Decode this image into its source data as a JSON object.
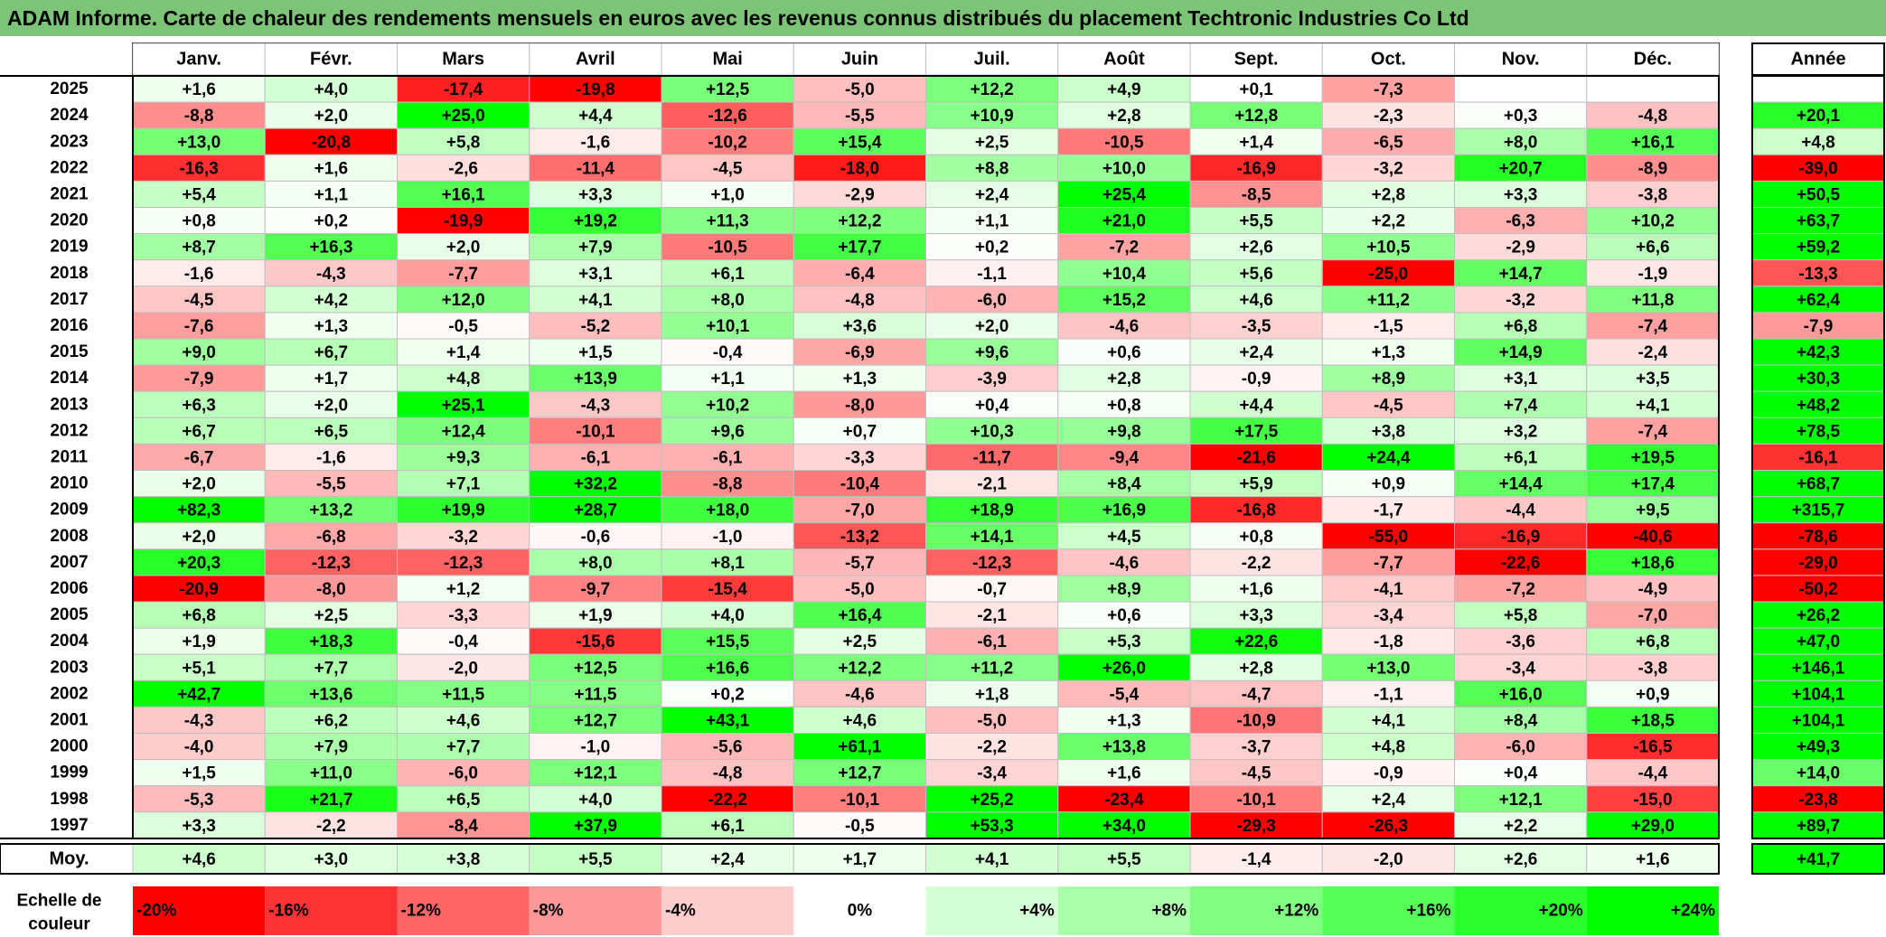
{
  "title": "ADAM Informe. Carte de chaleur des rendements mensuels en euros avec les revenus connus distribués du placement Techtronic Industries Co Ltd",
  "colors": {
    "title_bg": "#7cc576",
    "neg_max": "#ff0000",
    "pos_max": "#00ff00",
    "neutral": "#ffffff",
    "grid": "#bfbfbf",
    "border": "#000000"
  },
  "chart_data": {
    "type": "heatmap",
    "months": [
      "Janv.",
      "Févr.",
      "Mars",
      "Avril",
      "Mai",
      "Juin",
      "Juil.",
      "Août",
      "Sept.",
      "Oct.",
      "Nov.",
      "Déc."
    ],
    "year_label": "Année",
    "years": [
      2025,
      2024,
      2023,
      2022,
      2021,
      2020,
      2019,
      2018,
      2017,
      2016,
      2015,
      2014,
      2013,
      2012,
      2011,
      2010,
      2009,
      2008,
      2007,
      2006,
      2005,
      2004,
      2003,
      2002,
      2001,
      2000,
      1999,
      1998,
      1997
    ],
    "values": [
      [
        1.6,
        4.0,
        -17.4,
        -19.8,
        12.5,
        -5.0,
        12.2,
        4.9,
        0.1,
        -7.3,
        null,
        null
      ],
      [
        -8.8,
        2.0,
        25.0,
        4.4,
        -12.6,
        -5.5,
        10.9,
        2.8,
        12.8,
        -2.3,
        0.3,
        -4.8
      ],
      [
        13.0,
        -20.8,
        5.8,
        -1.6,
        -10.2,
        15.4,
        2.5,
        -10.5,
        1.4,
        -6.5,
        8.0,
        16.1
      ],
      [
        -16.3,
        1.6,
        -2.6,
        -11.4,
        -4.5,
        -18.0,
        8.8,
        10.0,
        -16.9,
        -3.2,
        20.7,
        -8.9
      ],
      [
        5.4,
        1.1,
        16.1,
        3.3,
        1.0,
        -2.9,
        2.4,
        25.4,
        -8.5,
        2.8,
        3.3,
        -3.8
      ],
      [
        0.8,
        0.2,
        -19.9,
        19.2,
        11.3,
        12.2,
        1.1,
        21.0,
        5.5,
        2.2,
        -6.3,
        10.2
      ],
      [
        8.7,
        16.3,
        2.0,
        7.9,
        -10.5,
        17.7,
        0.2,
        -7.2,
        2.6,
        10.5,
        -2.9,
        6.6
      ],
      [
        -1.6,
        -4.3,
        -7.7,
        3.1,
        6.1,
        -6.4,
        -1.1,
        10.4,
        5.6,
        -25.0,
        14.7,
        -1.9
      ],
      [
        -4.5,
        4.2,
        12.0,
        4.1,
        8.0,
        -4.8,
        -6.0,
        15.2,
        4.6,
        11.2,
        -3.2,
        11.8
      ],
      [
        -7.6,
        1.3,
        -0.5,
        -5.2,
        10.1,
        3.6,
        2.0,
        -4.6,
        -3.5,
        -1.5,
        6.8,
        -7.4
      ],
      [
        9.0,
        6.7,
        1.4,
        1.5,
        -0.4,
        -6.9,
        9.6,
        0.6,
        2.4,
        1.3,
        14.9,
        -2.4
      ],
      [
        -7.9,
        1.7,
        4.8,
        13.9,
        1.1,
        1.3,
        -3.9,
        2.8,
        -0.9,
        8.9,
        3.1,
        3.5
      ],
      [
        6.3,
        2.0,
        25.1,
        -4.3,
        10.2,
        -8.0,
        0.4,
        0.8,
        4.4,
        -4.5,
        7.4,
        4.1
      ],
      [
        6.7,
        6.5,
        12.4,
        -10.1,
        9.6,
        0.7,
        10.3,
        9.8,
        17.5,
        3.8,
        3.2,
        -7.4
      ],
      [
        -6.7,
        -1.6,
        9.3,
        -6.1,
        -6.1,
        -3.3,
        -11.7,
        -9.4,
        -21.6,
        24.4,
        6.1,
        19.5
      ],
      [
        2.0,
        -5.5,
        7.1,
        32.2,
        -8.8,
        -10.4,
        -2.1,
        8.4,
        5.9,
        0.9,
        14.4,
        17.4
      ],
      [
        82.3,
        13.2,
        19.9,
        28.7,
        18.0,
        -7.0,
        18.9,
        16.9,
        -16.8,
        -1.7,
        -4.4,
        9.5
      ],
      [
        2.0,
        -6.8,
        -3.2,
        -0.6,
        -1.0,
        -13.2,
        14.1,
        4.5,
        0.8,
        -55.0,
        -16.9,
        -40.6
      ],
      [
        20.3,
        -12.3,
        -12.3,
        8.0,
        8.1,
        -5.7,
        -12.3,
        -4.6,
        -2.2,
        -7.7,
        -22.6,
        18.6
      ],
      [
        -20.9,
        -8.0,
        1.2,
        -9.7,
        -15.4,
        -5.0,
        -0.7,
        8.9,
        1.6,
        -4.1,
        -7.2,
        -4.9
      ],
      [
        6.8,
        2.5,
        -3.3,
        1.9,
        4.0,
        16.4,
        -2.1,
        0.6,
        3.3,
        -3.4,
        5.8,
        -7.0
      ],
      [
        1.9,
        18.3,
        -0.4,
        -15.6,
        15.5,
        2.5,
        -6.1,
        5.3,
        22.6,
        -1.8,
        -3.6,
        6.8
      ],
      [
        5.1,
        7.7,
        -2.0,
        12.5,
        16.6,
        12.2,
        11.2,
        26.0,
        2.8,
        13.0,
        -3.4,
        -3.8
      ],
      [
        42.7,
        13.6,
        11.5,
        11.5,
        0.2,
        -4.6,
        1.8,
        -5.4,
        -4.7,
        -1.1,
        16.0,
        0.9
      ],
      [
        -4.3,
        6.2,
        4.6,
        12.7,
        43.1,
        4.6,
        -5.0,
        1.3,
        -10.9,
        4.1,
        8.4,
        18.5
      ],
      [
        -4.0,
        7.9,
        7.7,
        -1.0,
        -5.6,
        61.1,
        -2.2,
        13.8,
        -3.7,
        4.8,
        -6.0,
        -16.5
      ],
      [
        1.5,
        11.0,
        -6.0,
        12.1,
        -4.8,
        12.7,
        -3.4,
        1.6,
        -4.5,
        -0.9,
        0.4,
        -4.4
      ],
      [
        -5.3,
        21.7,
        6.5,
        4.0,
        -22.2,
        -10.1,
        25.2,
        -23.4,
        -10.1,
        2.4,
        12.1,
        -15.0
      ],
      [
        3.3,
        -2.2,
        -8.4,
        37.9,
        6.1,
        -0.5,
        53.3,
        34.0,
        -29.3,
        -26.3,
        2.2,
        29.0
      ]
    ],
    "annual": [
      null,
      20.1,
      4.8,
      -39.0,
      50.5,
      63.7,
      59.2,
      -13.3,
      62.4,
      -7.9,
      42.3,
      30.3,
      48.2,
      78.5,
      -16.1,
      68.7,
      315.7,
      -78.6,
      -29.0,
      -50.2,
      26.2,
      47.0,
      146.1,
      104.1,
      104.1,
      49.3,
      14.0,
      -23.8,
      89.7
    ],
    "average_label": "Moy.",
    "average_months": [
      4.6,
      3.0,
      3.8,
      5.5,
      2.4,
      1.7,
      4.1,
      5.5,
      -1.4,
      -2.0,
      2.6,
      1.6
    ],
    "average_annual": 41.7,
    "scale_label": [
      "Echelle de",
      "couleur"
    ],
    "scale_values": [
      -20,
      -16,
      -12,
      -8,
      -4,
      0,
      4,
      8,
      12,
      16,
      20,
      24
    ],
    "scale_labels": [
      "-20%",
      "-16%",
      "-12%",
      "-8%",
      "-4%",
      "0%",
      "+4%",
      "+8%",
      "+12%",
      "+16%",
      "+20%",
      "+24%"
    ],
    "color_range": [
      -20,
      24
    ]
  }
}
